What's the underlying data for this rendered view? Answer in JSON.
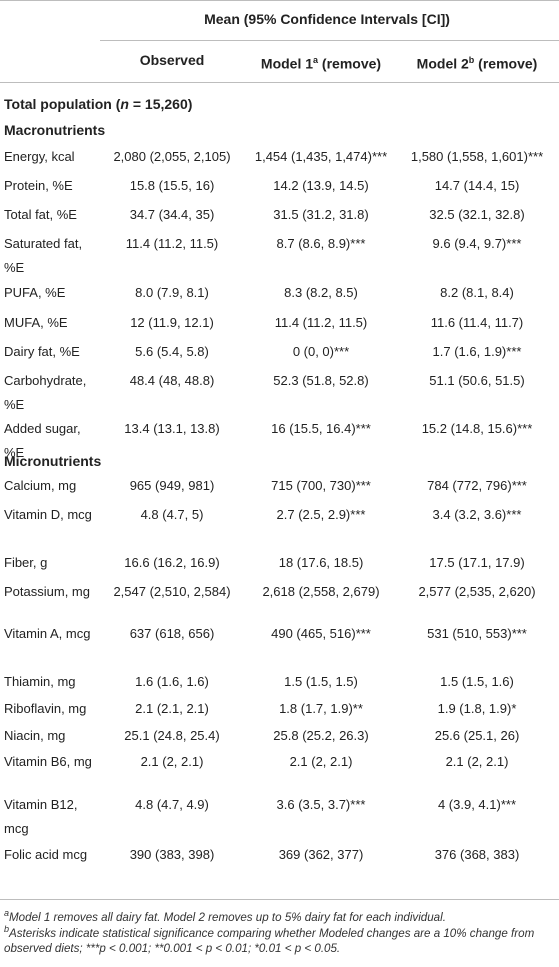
{
  "header": {
    "group_title": "Mean (95% Confidence Intervals [CI])",
    "col_observed": "Observed",
    "col_model1_prefix": "Model 1",
    "col_model1_sup": "a",
    "col_model1_suffix": " (remove)",
    "col_model2_prefix": "Model 2",
    "col_model2_sup": "b",
    "col_model2_suffix": " (remove)"
  },
  "population": {
    "prefix": "Total population (",
    "n_label": "n",
    "suffix": " = 15,260)"
  },
  "sections": {
    "macro": "Macronutrients",
    "micro": "Micronutrients"
  },
  "rows": [
    {
      "label": "Energy, kcal",
      "obs": "2,080 (2,055, 2,105)",
      "m1": "1,454 (1,435, 1,474)***",
      "m2": "1,580 (1,558, 1,601)***"
    },
    {
      "label": "Protein, %E",
      "obs": "15.8 (15.5, 16)",
      "m1": "14.2 (13.9, 14.5)",
      "m2": "14.7 (14.4, 15)"
    },
    {
      "label": "Total fat, %E",
      "obs": "34.7 (34.4, 35)",
      "m1": "31.5 (31.2, 31.8)",
      "m2": "32.5 (32.1, 32.8)"
    },
    {
      "label": "Saturated fat, %E",
      "obs": "11.4 (11.2, 11.5)",
      "m1": "8.7 (8.6, 8.9)***",
      "m2": "9.6 (9.4, 9.7)***"
    },
    {
      "label": "PUFA, %E",
      "obs": "8.0 (7.9, 8.1)",
      "m1": "8.3 (8.2, 8.5)",
      "m2": "8.2 (8.1, 8.4)"
    },
    {
      "label": "MUFA, %E",
      "obs": "12 (11.9, 12.1)",
      "m1": "11.4 (11.2, 11.5)",
      "m2": "11.6 (11.4, 11.7)"
    },
    {
      "label": "Dairy fat, %E",
      "obs": "5.6 (5.4, 5.8)",
      "m1": "0 (0, 0)***",
      "m2": "1.7 (1.6, 1.9)***"
    },
    {
      "label": "Carbohydrate, %E",
      "obs": "48.4 (48, 48.8)",
      "m1": "52.3 (51.8, 52.8)",
      "m2": "51.1 (50.6, 51.5)"
    },
    {
      "label": "Added sugar, %E",
      "obs": "13.4 (13.1, 13.8)",
      "m1": "16 (15.5, 16.4)***",
      "m2": "15.2 (14.8, 15.6)***"
    },
    {
      "label": "Calcium, mg",
      "obs": "965 (949, 981)",
      "m1": "715 (700, 730)***",
      "m2": "784 (772, 796)***"
    },
    {
      "label": "Vitamin D, mcg",
      "obs": "4.8 (4.7, 5)",
      "m1": "2.7 (2.5, 2.9)***",
      "m2": "3.4 (3.2, 3.6)***"
    },
    {
      "label": "Fiber, g",
      "obs": "16.6 (16.2, 16.9)",
      "m1": "18 (17.6, 18.5)",
      "m2": "17.5 (17.1, 17.9)"
    },
    {
      "label": "Potassium, mg",
      "obs": "2,547 (2,510, 2,584)",
      "m1": "2,618 (2,558, 2,679)",
      "m2": "2,577 (2,535, 2,620)"
    },
    {
      "label": "Vitamin A, mcg",
      "obs": "637 (618, 656)",
      "m1": "490 (465, 516)***",
      "m2": "531 (510, 553)***"
    },
    {
      "label": "Thiamin, mg",
      "obs": "1.6 (1.6, 1.6)",
      "m1": "1.5 (1.5, 1.5)",
      "m2": "1.5 (1.5, 1.6)"
    },
    {
      "label": "Riboflavin, mg",
      "obs": "2.1 (2.1, 2.1)",
      "m1": "1.8 (1.7, 1.9)**",
      "m2": "1.9 (1.8, 1.9)*"
    },
    {
      "label": "Niacin, mg",
      "obs": "25.1 (24.8, 25.4)",
      "m1": "25.8 (25.2, 26.3)",
      "m2": "25.6 (25.1, 26)"
    },
    {
      "label": "Vitamin B6, mg",
      "obs": "2.1 (2, 2.1)",
      "m1": "2.1 (2, 2.1)",
      "m2": "2.1 (2, 2.1)"
    },
    {
      "label": "Vitamin B12, mcg",
      "obs": "4.8 (4.7, 4.9)",
      "m1": "3.6 (3.5, 3.7)***",
      "m2": "4 (3.9, 4.1)***"
    },
    {
      "label": "Folic acid mcg",
      "obs": "390 (383, 398)",
      "m1": "369 (362, 377)",
      "m2": "376 (368, 383)"
    }
  ],
  "footnotes": {
    "a_mark": "a",
    "a_text": "Model 1 removes all dairy fat. Model 2 removes up to 5% dairy fat for each individual.",
    "b_mark": "b",
    "b_text": "Asterisks indicate statistical significance comparing whether Modeled changes are a 10% change from observed diets; ***p < 0.001; **0.001 < p < 0.01; *0.01 < p < 0.05."
  }
}
